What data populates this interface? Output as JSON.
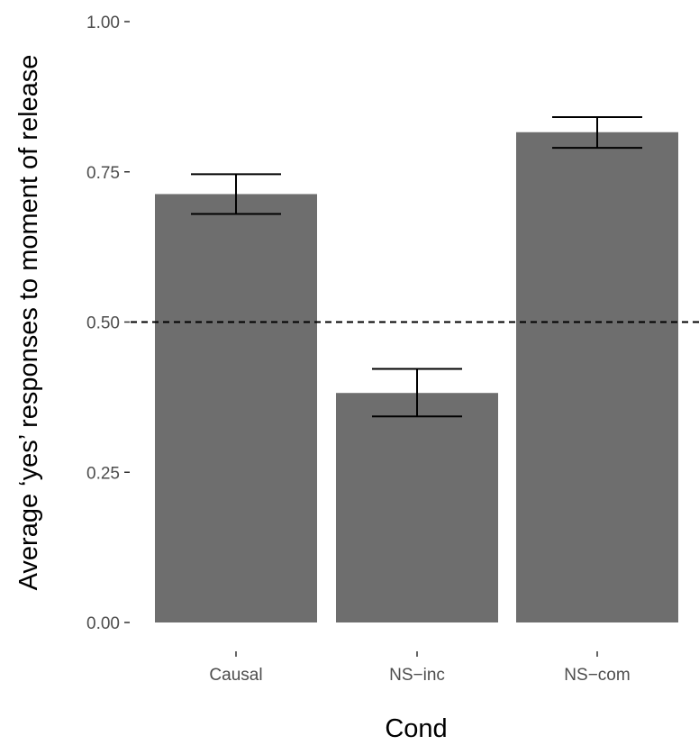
{
  "chart_data": {
    "type": "bar",
    "title": "",
    "xlabel": "Cond",
    "ylabel": "Average ‘yes’ responses to moment of release",
    "categories": [
      "Causal",
      "NS−inc",
      "NS−com"
    ],
    "values": [
      0.713,
      0.382,
      0.816
    ],
    "error_low": [
      0.68,
      0.343,
      0.79
    ],
    "error_high": [
      0.746,
      0.422,
      0.841
    ],
    "ylim": [
      0,
      1
    ],
    "yticks": [
      0,
      0.25,
      0.5,
      0.75,
      1
    ],
    "ytick_labels": [
      "0.00",
      "0.25",
      "0.50",
      "0.75",
      "1.00"
    ],
    "reference_line": {
      "y": 0.5,
      "style": "dashed"
    },
    "grid": false,
    "legend": "none",
    "colors": {
      "bar": "#6e6e6e",
      "error_bar": "#000000",
      "reference_line": "#000000",
      "tick": "#333333"
    }
  }
}
